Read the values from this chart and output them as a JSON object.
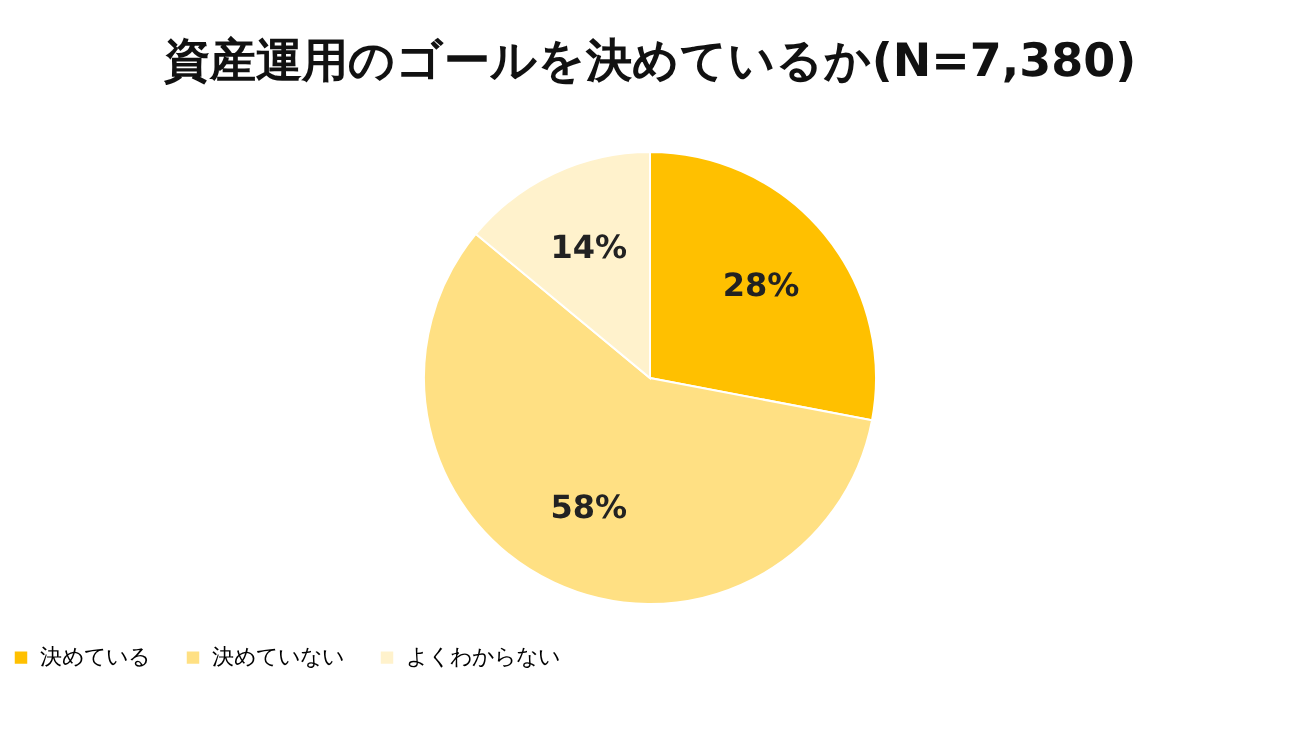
{
  "chart_data": {
    "type": "pie",
    "title": "資産運用のゴールを決めているか(N=7,380)",
    "categories": [
      "決めている",
      "決めていない",
      "よくわからない"
    ],
    "values": [
      28,
      58,
      14
    ],
    "colors": [
      "#ffc000",
      "#ffe083",
      "#fff2cc"
    ],
    "value_labels": [
      "28%",
      "58%",
      "14%"
    ],
    "legend": "bottom"
  }
}
